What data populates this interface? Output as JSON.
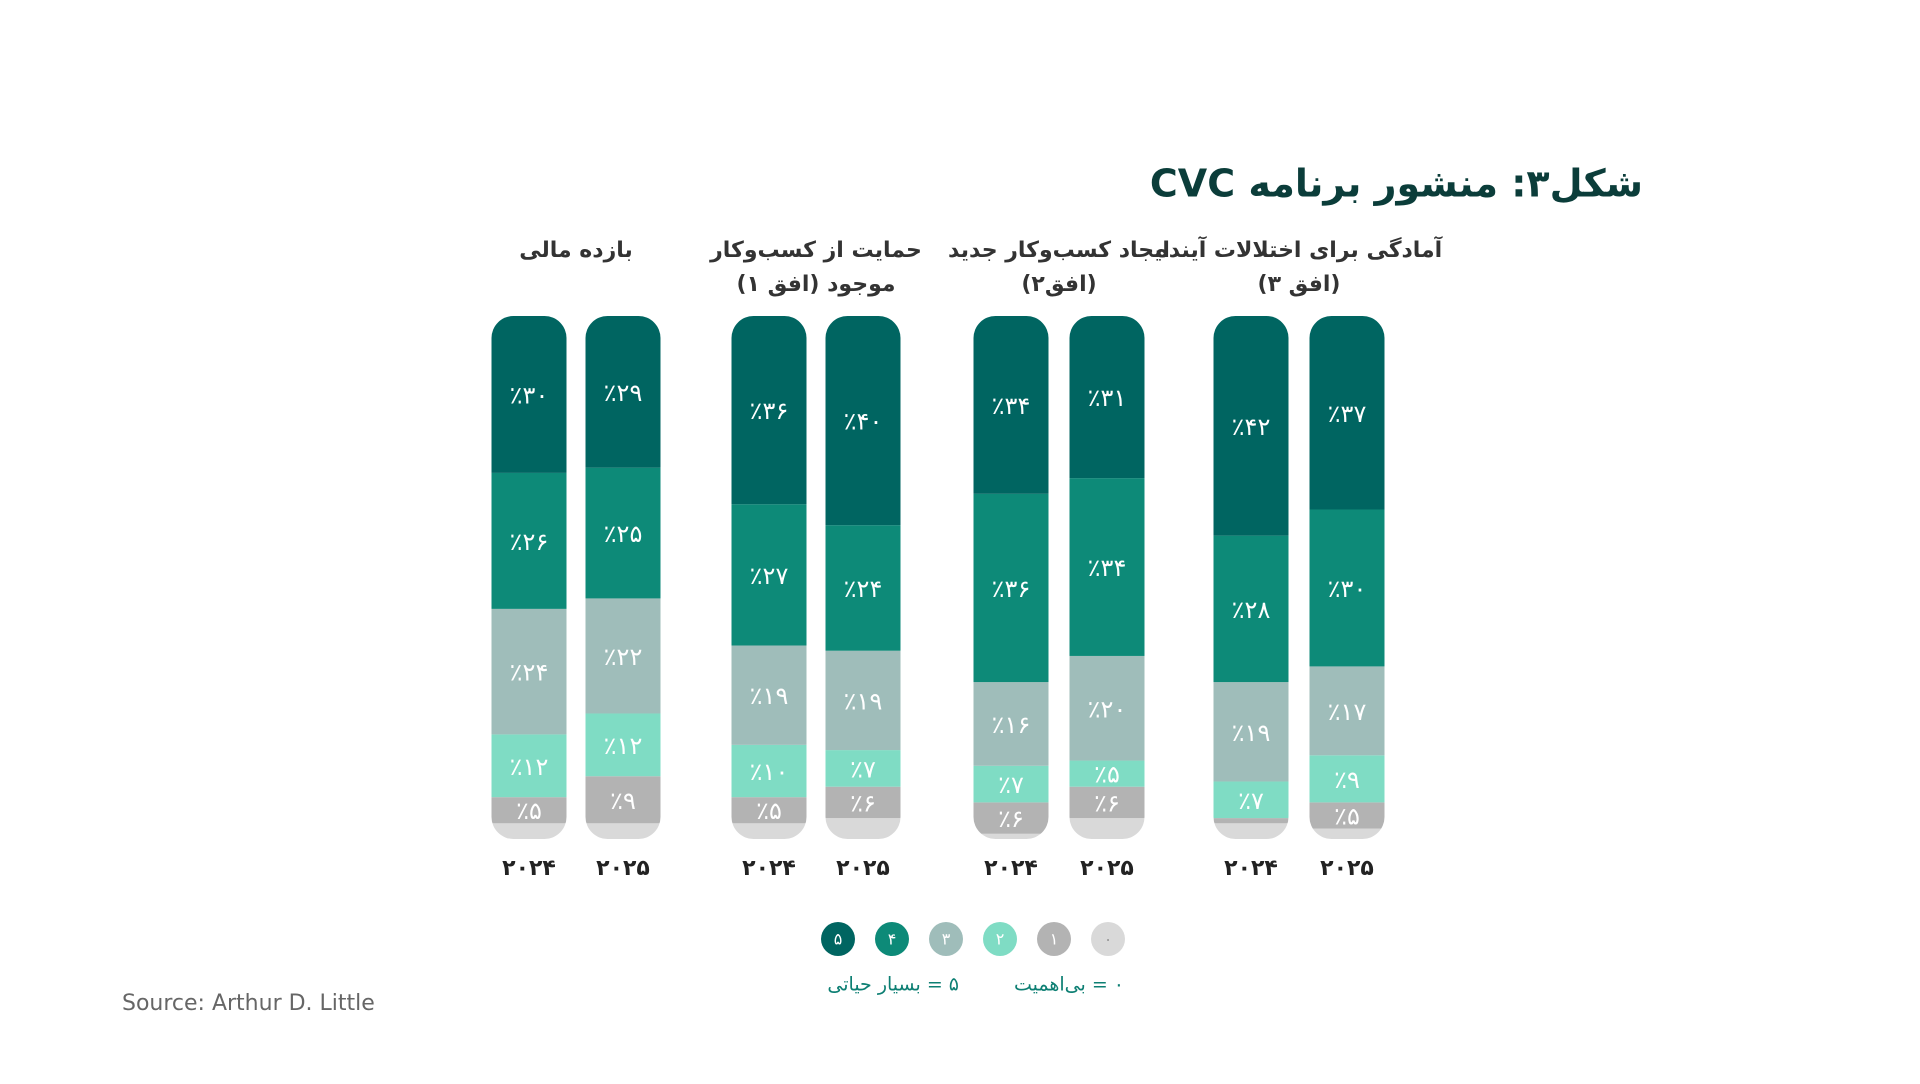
{
  "chart_data": {
    "type": "stacked_bar",
    "title": "شکل۳: منشور برنامه CVC",
    "groups": [
      [
        "بازده مالی"
      ],
      [
        "حمایت از کسب‌وکار",
        "موجود (افق ۱)"
      ],
      [
        "ایجاد کسب‌وکار جدید",
        "(افق۲)"
      ],
      [
        "آمادگی برای اختلالات آینده",
        "(افق ۳)"
      ]
    ],
    "categories": [
      "۲۰۲۴",
      "۲۰۲۵",
      "۲۰۲۴",
      "۲۰۲۵",
      "۲۰۲۴",
      "۲۰۲۵",
      "۲۰۲۴",
      "۲۰۲۵"
    ],
    "ylim": [
      0,
      100
    ],
    "series": [
      {
        "name": "۰",
        "color": "#d9d9d9",
        "values": [
          3,
          3,
          3,
          4,
          1,
          4,
          3,
          2
        ],
        "value_labels": [
          null,
          null,
          null,
          null,
          null,
          null,
          null,
          null
        ]
      },
      {
        "name": "۱",
        "color": "#b3b3b3",
        "values": [
          5,
          9,
          5,
          6,
          6,
          6,
          1,
          5
        ],
        "value_labels": [
          "٪۵",
          "٪۹",
          "٪۵",
          "٪۶",
          "٪۶",
          "٪۶",
          null,
          "٪۵"
        ]
      },
      {
        "name": "۲",
        "color": "#7fdcc4",
        "values": [
          12,
          12,
          10,
          7,
          7,
          5,
          7,
          9
        ],
        "value_labels": [
          "٪۱۲",
          "٪۱۲",
          "٪۱۰",
          "٪۷",
          "٪۷",
          "٪۵",
          "٪۷",
          "٪۹"
        ]
      },
      {
        "name": "۳",
        "color": "#9fbdba",
        "values": [
          24,
          22,
          19,
          19,
          16,
          20,
          19,
          17
        ],
        "value_labels": [
          "٪۲۴",
          "٪۲۲",
          "٪۱۹",
          "٪۱۹",
          "٪۱۶",
          "٪۲۰",
          "٪۱۹",
          "٪۱۷"
        ]
      },
      {
        "name": "۴",
        "color": "#0d8a78",
        "values": [
          26,
          25,
          27,
          24,
          36,
          34,
          28,
          30
        ],
        "value_labels": [
          "٪۲۶",
          "٪۲۵",
          "٪۲۷",
          "٪۲۴",
          "٪۳۶",
          "٪۳۴",
          "٪۲۸",
          "٪۳۰"
        ]
      },
      {
        "name": "۵",
        "color": "#006561",
        "values": [
          30,
          29,
          36,
          40,
          34,
          31,
          42,
          37
        ],
        "value_labels": [
          "٪۳۰",
          "٪۲۹",
          "٪۳۶",
          "٪۴۰",
          "٪۳۴",
          "٪۳۱",
          "٪۴۲",
          "٪۳۷"
        ]
      }
    ],
    "legend_notes": [
      "۰ = بی‌اهمیت",
      "۵ = بسیار حیاتی"
    ],
    "source": "Source: Arthur D. Little"
  }
}
